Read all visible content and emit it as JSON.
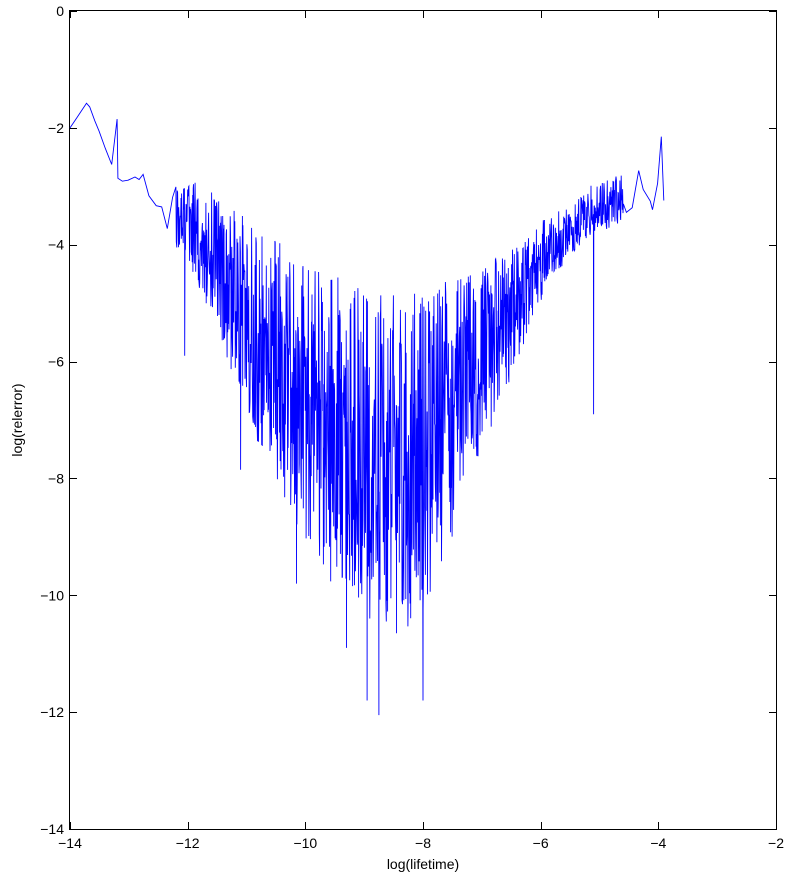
{
  "chart_data": {
    "type": "line",
    "title": "",
    "xlabel": "log(lifetime)",
    "ylabel": "log(relerror)",
    "xlim": [
      -14,
      -2
    ],
    "ylim": [
      -14,
      0
    ],
    "xticks": [
      -14,
      -12,
      -10,
      -8,
      -6,
      -4,
      -2
    ],
    "yticks": [
      0,
      -2,
      -4,
      -6,
      -8,
      -10,
      -12,
      -14
    ],
    "xtick_labels": [
      "−14",
      "−12",
      "−10",
      "−8",
      "−6",
      "−4",
      "−2"
    ],
    "ytick_labels": [
      "0",
      "−2",
      "−4",
      "−6",
      "−8",
      "−10",
      "−12",
      "−14"
    ],
    "grid": false,
    "legend": null,
    "series": [
      {
        "color": "#0000ff",
        "envelope_upper": [
          [
            -14.0,
            -2.0
          ],
          [
            -13.7,
            -1.55
          ],
          [
            -13.2,
            -2.85
          ],
          [
            -12.8,
            -2.5
          ],
          [
            -12.4,
            -2.6
          ],
          [
            -12.0,
            -2.75
          ],
          [
            -11.6,
            -3.1
          ],
          [
            -11.2,
            -3.4
          ],
          [
            -10.8,
            -3.7
          ],
          [
            -10.4,
            -4.0
          ],
          [
            -10.0,
            -4.25
          ],
          [
            -9.6,
            -4.45
          ],
          [
            -9.2,
            -4.65
          ],
          [
            -8.8,
            -4.8
          ],
          [
            -8.4,
            -4.85
          ],
          [
            -8.0,
            -4.8
          ],
          [
            -7.6,
            -4.6
          ],
          [
            -7.2,
            -4.45
          ],
          [
            -6.8,
            -4.25
          ],
          [
            -6.4,
            -3.95
          ],
          [
            -6.0,
            -3.6
          ],
          [
            -5.6,
            -3.35
          ],
          [
            -5.2,
            -3.0
          ],
          [
            -4.8,
            -2.8
          ],
          [
            -4.4,
            -2.7
          ],
          [
            -4.0,
            -2.5
          ],
          [
            -3.85,
            -3.6
          ]
        ],
        "envelope_lower": [
          [
            -14.0,
            -2.0
          ],
          [
            -13.7,
            -1.55
          ],
          [
            -13.2,
            -2.9
          ],
          [
            -12.8,
            -3.0
          ],
          [
            -12.4,
            -3.8
          ],
          [
            -12.0,
            -4.3
          ],
          [
            -11.6,
            -5.2
          ],
          [
            -11.2,
            -6.3
          ],
          [
            -10.8,
            -7.4
          ],
          [
            -10.4,
            -8.3
          ],
          [
            -10.0,
            -9.1
          ],
          [
            -9.6,
            -9.8
          ],
          [
            -9.2,
            -10.3
          ],
          [
            -8.8,
            -10.6
          ],
          [
            -8.4,
            -10.7
          ],
          [
            -8.0,
            -10.3
          ],
          [
            -7.6,
            -9.3
          ],
          [
            -7.2,
            -8.2
          ],
          [
            -6.8,
            -7.1
          ],
          [
            -6.4,
            -6.0
          ],
          [
            -6.0,
            -5.0
          ],
          [
            -5.6,
            -4.3
          ],
          [
            -5.2,
            -3.9
          ],
          [
            -4.8,
            -3.7
          ],
          [
            -4.4,
            -3.6
          ],
          [
            -4.0,
            -3.2
          ],
          [
            -3.85,
            -3.6
          ]
        ],
        "outlier_spikes": [
          [
            -13.2,
            -1.85
          ],
          [
            -12.05,
            -5.9
          ],
          [
            -11.1,
            -7.85
          ],
          [
            -10.15,
            -9.8
          ],
          [
            -9.3,
            -10.9
          ],
          [
            -8.95,
            -11.8
          ],
          [
            -8.75,
            -12.05
          ],
          [
            -8.45,
            -10.65
          ],
          [
            -8.0,
            -11.8
          ],
          [
            -5.1,
            -6.9
          ],
          [
            -4.1,
            -3.4
          ],
          [
            -3.95,
            -2.15
          ]
        ]
      }
    ]
  }
}
